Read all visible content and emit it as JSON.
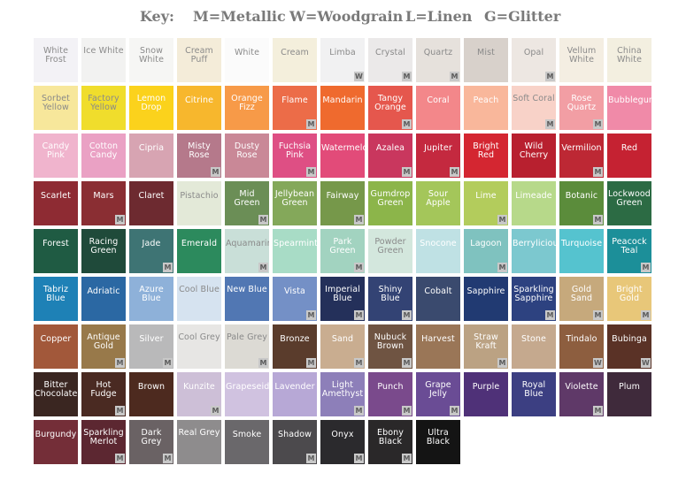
{
  "key": {
    "title": "Key:",
    "items": [
      "M=Metallic",
      "W=Woodgrain",
      "L=Linen",
      "G=Glitter"
    ]
  },
  "swatches": [
    {
      "name": "White Frost",
      "color": "#f3f2f6",
      "text": "light",
      "badge": ""
    },
    {
      "name": "Ice White",
      "color": "#f2f2f1",
      "text": "light",
      "badge": ""
    },
    {
      "name": "Snow White",
      "color": "#f6f6f4",
      "text": "light",
      "badge": ""
    },
    {
      "name": "Cream Puff",
      "color": "#f4ecd9",
      "text": "light",
      "badge": ""
    },
    {
      "name": "White",
      "color": "#fbfbfb",
      "text": "light",
      "badge": ""
    },
    {
      "name": "Cream",
      "color": "#f4efdc",
      "text": "light",
      "badge": ""
    },
    {
      "name": "Limba",
      "color": "#f1f1f2",
      "text": "light",
      "badge": "W"
    },
    {
      "name": "Crystal",
      "color": "#ebe9e9",
      "text": "light",
      "badge": "M"
    },
    {
      "name": "Quartz",
      "color": "#e6e1dc",
      "text": "light",
      "badge": "M"
    },
    {
      "name": "Mist",
      "color": "#d8d1cb",
      "text": "light",
      "badge": ""
    },
    {
      "name": "Opal",
      "color": "#ede7e2",
      "text": "light",
      "badge": "M"
    },
    {
      "name": "Vellum White",
      "color": "#f4eee2",
      "text": "light",
      "badge": ""
    },
    {
      "name": "China White",
      "color": "#f3efe0",
      "text": "light",
      "badge": ""
    },
    {
      "name": "Sorbet Yellow",
      "color": "#f7e79b",
      "text": "light",
      "badge": ""
    },
    {
      "name": "Factory Yellow",
      "color": "#f0dd2c",
      "text": "light",
      "badge": ""
    },
    {
      "name": "Lemon Drop",
      "color": "#fbd21c",
      "text": "dark",
      "badge": ""
    },
    {
      "name": "Citrine",
      "color": "#f7b72d",
      "text": "dark",
      "badge": ""
    },
    {
      "name": "Orange Fizz",
      "color": "#f79a48",
      "text": "dark",
      "badge": ""
    },
    {
      "name": "Flame",
      "color": "#ec6c48",
      "text": "dark",
      "badge": "M"
    },
    {
      "name": "Mandarin",
      "color": "#ef6a2e",
      "text": "dark",
      "badge": ""
    },
    {
      "name": "Tangy Orange",
      "color": "#e5574d",
      "text": "dark",
      "badge": "M"
    },
    {
      "name": "Coral",
      "color": "#f3878a",
      "text": "dark",
      "badge": ""
    },
    {
      "name": "Peach",
      "color": "#f9b79b",
      "text": "dark",
      "badge": ""
    },
    {
      "name": "Soft Coral",
      "color": "#f8d2c8",
      "text": "light",
      "badge": "M"
    },
    {
      "name": "Rose Quartz",
      "color": "#f29ea4",
      "text": "dark",
      "badge": "M"
    },
    {
      "name": "Bubblegum",
      "color": "#f08aa8",
      "text": "dark",
      "badge": ""
    },
    {
      "name": "Candy Pink",
      "color": "#f0b4cd",
      "text": "dark",
      "badge": ""
    },
    {
      "name": "Cotton Candy",
      "color": "#eaa1c4",
      "text": "dark",
      "badge": ""
    },
    {
      "name": "Cipria",
      "color": "#d7a4b2",
      "text": "dark",
      "badge": ""
    },
    {
      "name": "Misty Rose",
      "color": "#b5798b",
      "text": "dark",
      "badge": "M"
    },
    {
      "name": "Dusty Rose",
      "color": "#c98897",
      "text": "dark",
      "badge": ""
    },
    {
      "name": "Fuchsia Pink",
      "color": "#de4f84",
      "text": "dark",
      "badge": "M"
    },
    {
      "name": "Watermelon",
      "color": "#e24b79",
      "text": "dark",
      "badge": ""
    },
    {
      "name": "Azalea",
      "color": "#c9375e",
      "text": "dark",
      "badge": "M"
    },
    {
      "name": "Jupiter",
      "color": "#c4293f",
      "text": "dark",
      "badge": "M"
    },
    {
      "name": "Bright Red",
      "color": "#d42631",
      "text": "dark",
      "badge": ""
    },
    {
      "name": "Wild Cherry",
      "color": "#b8202f",
      "text": "dark",
      "badge": ""
    },
    {
      "name": "Vermilion",
      "color": "#bd2834",
      "text": "dark",
      "badge": "M"
    },
    {
      "name": "Red",
      "color": "#c52232",
      "text": "dark",
      "badge": ""
    },
    {
      "name": "Scarlet",
      "color": "#8e2b33",
      "text": "dark",
      "badge": ""
    },
    {
      "name": "Mars",
      "color": "#8a2e33",
      "text": "dark",
      "badge": "M"
    },
    {
      "name": "Claret",
      "color": "#6d2a30",
      "text": "dark",
      "badge": ""
    },
    {
      "name": "Pistachio",
      "color": "#e3e9d8",
      "text": "light",
      "badge": ""
    },
    {
      "name": "Mid Green",
      "color": "#6b8e56",
      "text": "dark",
      "badge": "M"
    },
    {
      "name": "Jellybean Green",
      "color": "#84a85a",
      "text": "dark",
      "badge": ""
    },
    {
      "name": "Fairway",
      "color": "#76984a",
      "text": "dark",
      "badge": "M"
    },
    {
      "name": "Gumdrop Green",
      "color": "#8cb54a",
      "text": "dark",
      "badge": ""
    },
    {
      "name": "Sour Apple",
      "color": "#a4c65a",
      "text": "dark",
      "badge": ""
    },
    {
      "name": "Lime",
      "color": "#b3cc5c",
      "text": "dark",
      "badge": "M"
    },
    {
      "name": "Limeade",
      "color": "#b7d98a",
      "text": "dark",
      "badge": ""
    },
    {
      "name": "Botanic",
      "color": "#5b8c3b",
      "text": "dark",
      "badge": "M"
    },
    {
      "name": "Lockwood Green",
      "color": "#2c6b44",
      "text": "dark",
      "badge": ""
    },
    {
      "name": "Forest",
      "color": "#1f5b43",
      "text": "dark",
      "badge": ""
    },
    {
      "name": "Racing Green",
      "color": "#1f4a3a",
      "text": "dark",
      "badge": ""
    },
    {
      "name": "Jade",
      "color": "#3e7474",
      "text": "dark",
      "badge": "M"
    },
    {
      "name": "Emerald",
      "color": "#2c8a5d",
      "text": "dark",
      "badge": ""
    },
    {
      "name": "Aquamarine",
      "color": "#c9dfd8",
      "text": "light",
      "badge": "M"
    },
    {
      "name": "Spearmint",
      "color": "#a8dcc6",
      "text": "dark",
      "badge": ""
    },
    {
      "name": "Park Green",
      "color": "#a2d3c0",
      "text": "dark",
      "badge": "M"
    },
    {
      "name": "Powder Green",
      "color": "#d3e7dd",
      "text": "light",
      "badge": ""
    },
    {
      "name": "Snocone",
      "color": "#bfe1e4",
      "text": "dark",
      "badge": ""
    },
    {
      "name": "Lagoon",
      "color": "#7fc2bf",
      "text": "dark",
      "badge": "M"
    },
    {
      "name": "Berrylicious",
      "color": "#7cc8cf",
      "text": "dark",
      "badge": ""
    },
    {
      "name": "Turquoise",
      "color": "#55c3cf",
      "text": "dark",
      "badge": ""
    },
    {
      "name": "Peacock Teal",
      "color": "#1c8f99",
      "text": "dark",
      "badge": "M"
    },
    {
      "name": "Tabriz Blue",
      "color": "#1e81b6",
      "text": "dark",
      "badge": ""
    },
    {
      "name": "Adriatic",
      "color": "#2b68a3",
      "text": "dark",
      "badge": ""
    },
    {
      "name": "Azure Blue",
      "color": "#8eb1d9",
      "text": "dark",
      "badge": ""
    },
    {
      "name": "Cool Blue",
      "color": "#d6e3f0",
      "text": "light",
      "badge": ""
    },
    {
      "name": "New Blue",
      "color": "#5177b3",
      "text": "dark",
      "badge": ""
    },
    {
      "name": "Vista",
      "color": "#7490c6",
      "text": "dark",
      "badge": "M"
    },
    {
      "name": "Imperial Blue",
      "color": "#24305a",
      "text": "dark",
      "badge": "M"
    },
    {
      "name": "Shiny Blue",
      "color": "#334374",
      "text": "dark",
      "badge": "M"
    },
    {
      "name": "Cobalt",
      "color": "#3a4a6e",
      "text": "dark",
      "badge": ""
    },
    {
      "name": "Sapphire",
      "color": "#213a72",
      "text": "dark",
      "badge": ""
    },
    {
      "name": "Sparkling Sapphire",
      "color": "#2d4280",
      "text": "dark",
      "badge": "M"
    },
    {
      "name": "Gold Sand",
      "color": "#c6a97c",
      "text": "dark",
      "badge": "M"
    },
    {
      "name": "Bright Gold",
      "color": "#e8c779",
      "text": "dark",
      "badge": "M"
    },
    {
      "name": "Copper",
      "color": "#a2583a",
      "text": "dark",
      "badge": ""
    },
    {
      "name": "Antique Gold",
      "color": "#98794a",
      "text": "dark",
      "badge": "M"
    },
    {
      "name": "Silver",
      "color": "#b9b9ba",
      "text": "dark",
      "badge": "M"
    },
    {
      "name": "Cool Grey",
      "color": "#e7e6e4",
      "text": "light",
      "badge": ""
    },
    {
      "name": "Pale Grey",
      "color": "#dcdad4",
      "text": "light",
      "badge": "M"
    },
    {
      "name": "Bronze",
      "color": "#5a3c2c",
      "text": "dark",
      "badge": "M"
    },
    {
      "name": "Sand",
      "color": "#c9ad90",
      "text": "dark",
      "badge": "M"
    },
    {
      "name": "Nubuck Brown",
      "color": "#6f5442",
      "text": "dark",
      "badge": "M"
    },
    {
      "name": "Harvest",
      "color": "#9a7657",
      "text": "dark",
      "badge": ""
    },
    {
      "name": "Straw Kraft",
      "color": "#bba283",
      "text": "dark",
      "badge": "M"
    },
    {
      "name": "Stone",
      "color": "#c5a98e",
      "text": "dark",
      "badge": ""
    },
    {
      "name": "Tindalo",
      "color": "#8d5e3f",
      "text": "dark",
      "badge": "W"
    },
    {
      "name": "Bubinga",
      "color": "#5a3226",
      "text": "dark",
      "badge": "W"
    },
    {
      "name": "Bitter Chocolate",
      "color": "#3a2621",
      "text": "dark",
      "badge": ""
    },
    {
      "name": "Hot Fudge",
      "color": "#4a2a22",
      "text": "dark",
      "badge": "M"
    },
    {
      "name": "Brown",
      "color": "#4d2a1f",
      "text": "dark",
      "badge": ""
    },
    {
      "name": "Kunzite",
      "color": "#cdbfd7",
      "text": "dark",
      "badge": "M"
    },
    {
      "name": "Grapeseide",
      "color": "#d0c2e0",
      "text": "dark",
      "badge": ""
    },
    {
      "name": "Lavender",
      "color": "#b7a8d6",
      "text": "dark",
      "badge": ""
    },
    {
      "name": "Light Amethyst",
      "color": "#8d7fb9",
      "text": "dark",
      "badge": "M"
    },
    {
      "name": "Punch",
      "color": "#7a4a8c",
      "text": "dark",
      "badge": "M"
    },
    {
      "name": "Grape Jelly",
      "color": "#6a4c95",
      "text": "dark",
      "badge": "M"
    },
    {
      "name": "Purple",
      "color": "#4f3178",
      "text": "dark",
      "badge": ""
    },
    {
      "name": "Royal Blue",
      "color": "#3c3f82",
      "text": "dark",
      "badge": ""
    },
    {
      "name": "Violette",
      "color": "#5f3968",
      "text": "dark",
      "badge": "M"
    },
    {
      "name": "Plum",
      "color": "#3f2a3b",
      "text": "dark",
      "badge": ""
    },
    {
      "name": "Burgundy",
      "color": "#742e38",
      "text": "dark",
      "badge": ""
    },
    {
      "name": "Sparkling Merlot",
      "color": "#5c2731",
      "text": "dark",
      "badge": "M"
    },
    {
      "name": "Dark Grey",
      "color": "#6a6264",
      "text": "dark",
      "badge": "M"
    },
    {
      "name": "Real Grey",
      "color": "#8e8c8d",
      "text": "dark",
      "badge": ""
    },
    {
      "name": "Smoke",
      "color": "#6a686b",
      "text": "dark",
      "badge": ""
    },
    {
      "name": "Shadow",
      "color": "#4c4a4d",
      "text": "dark",
      "badge": "M"
    },
    {
      "name": "Onyx",
      "color": "#2b2a2d",
      "text": "dark",
      "badge": "M"
    },
    {
      "name": "Ebony Black",
      "color": "#2a2829",
      "text": "dark",
      "badge": "M"
    },
    {
      "name": "Ultra Black",
      "color": "#141414",
      "text": "dark",
      "badge": ""
    }
  ]
}
